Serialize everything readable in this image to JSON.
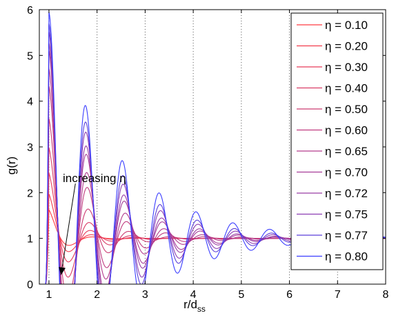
{
  "chart_data": {
    "type": "line",
    "title": "",
    "xlabel": "r/d",
    "xlabel_subscript": "ss",
    "ylabel": "g(r)",
    "xlim": [
      0.8,
      8
    ],
    "ylim": [
      0,
      6
    ],
    "xticks": [
      1,
      2,
      3,
      4,
      5,
      6,
      7,
      8
    ],
    "yticks": [
      0,
      1,
      2,
      3,
      4,
      5,
      6
    ],
    "grid": "vertical dotted lines at x = 1..7",
    "legend_position": "top-right",
    "color_gradient": {
      "start": "#ff3a40",
      "end": "#3a3dff"
    },
    "annotation": {
      "text": "increasing η",
      "arrow_from": [
        1.55,
        2.2
      ],
      "arrow_to": [
        1.25,
        0.2
      ]
    },
    "series": [
      {
        "name": "η = 0.10",
        "eta": 0.1,
        "color": "#ff3a40"
      },
      {
        "name": "η = 0.20",
        "eta": 0.2,
        "color": "#f23a4c"
      },
      {
        "name": "η = 0.30",
        "eta": 0.3,
        "color": "#e63a59"
      },
      {
        "name": "η = 0.40",
        "eta": 0.4,
        "color": "#d93b65"
      },
      {
        "name": "η = 0.50",
        "eta": 0.5,
        "color": "#cc3b72"
      },
      {
        "name": "η = 0.60",
        "eta": 0.6,
        "color": "#bf3b7f"
      },
      {
        "name": "η = 0.65",
        "eta": 0.65,
        "color": "#b33b8c"
      },
      {
        "name": "η = 0.70",
        "eta": 0.7,
        "color": "#a63c98"
      },
      {
        "name": "η = 0.72",
        "eta": 0.72,
        "color": "#993ca5"
      },
      {
        "name": "η = 0.75",
        "eta": 0.75,
        "color": "#8c3cb2"
      },
      {
        "name": "η = 0.77",
        "eta": 0.77,
        "color": "#5a3dd9"
      },
      {
        "name": "η = 0.80",
        "eta": 0.8,
        "color": "#3a3dff"
      }
    ]
  }
}
